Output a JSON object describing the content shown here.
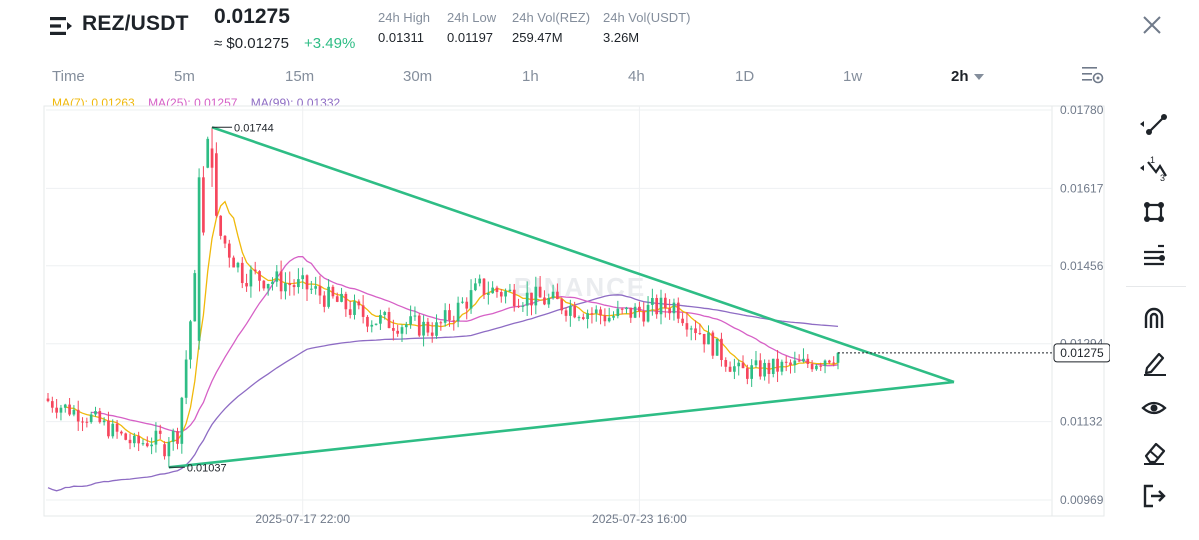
{
  "header": {
    "pair": "REZ/USDT",
    "last_price": "0.01275",
    "price_usd": "≈ $0.01275",
    "change": "+3.49%",
    "stats": [
      {
        "label": "24h High",
        "value": "0.01311"
      },
      {
        "label": "24h Low",
        "value": "0.01197"
      },
      {
        "label": "24h Vol(REZ)",
        "value": "259.47M"
      },
      {
        "label": "24h Vol(USDT)",
        "value": "3.26M"
      }
    ]
  },
  "timeframes": [
    "Time",
    "5m",
    "15m",
    "30m",
    "1h",
    "4h",
    "1D",
    "1w",
    "2h"
  ],
  "active_timeframe": "2h",
  "ma_legend": [
    {
      "label": "MA(7): 0.01263",
      "color": "#f0b90b"
    },
    {
      "label": "MA(25): 0.01257",
      "color": "#d660c6"
    },
    {
      "label": "MA(99): 0.01332",
      "color": "#8e6cc4"
    }
  ],
  "icons": {
    "menu": "menu-icon",
    "close": "close-icon",
    "settings": "chart-settings-icon",
    "tools": [
      "trend-line-icon",
      "fibonacci-icon",
      "rectangle-shape-icon",
      "horizontal-lines-icon",
      "magnet-icon",
      "pencil-icon",
      "eye-icon",
      "eraser-icon",
      "exit-icon"
    ]
  },
  "colors": {
    "up": "#2ebd85",
    "down": "#f6465d",
    "triangle": "#2ebd85",
    "grid": "#eef0f2"
  },
  "watermark": "BINANCE",
  "chart_data": {
    "type": "candlestick",
    "symbol": "REZ/USDT",
    "interval": "2h",
    "ylim": [
      0.00969,
      0.0178
    ],
    "y_ticks": [
      "0.01780",
      "0.01617",
      "0.01456",
      "0.01294",
      "0.01132",
      "0.00969"
    ],
    "x_ticks": [
      "2025-07-17 22:00",
      "2025-07-23 16:00"
    ],
    "current_price_label": "0.01275",
    "high_annotation": "0.01744",
    "low_annotation": "0.01037",
    "candle_key_points": [
      {
        "i": 0,
        "o": 0.0118,
        "c": 0.0117
      },
      {
        "i": 10,
        "o": 0.0115,
        "c": 0.0113
      },
      {
        "i": 20,
        "o": 0.011,
        "c": 0.0107
      },
      {
        "i": 30,
        "o": 0.0108,
        "c": 0.0113
      },
      {
        "i": 35,
        "o": 0.0135,
        "c": 0.0165
      },
      {
        "i": 38,
        "o": 0.016,
        "c": 0.015
      },
      {
        "i": 45,
        "o": 0.0148,
        "c": 0.014
      },
      {
        "i": 60,
        "o": 0.014,
        "c": 0.0142
      },
      {
        "i": 75,
        "o": 0.0138,
        "c": 0.0131
      },
      {
        "i": 90,
        "o": 0.0131,
        "c": 0.0134
      },
      {
        "i": 100,
        "o": 0.0135,
        "c": 0.0147
      },
      {
        "i": 115,
        "o": 0.014,
        "c": 0.0137
      },
      {
        "i": 130,
        "o": 0.0134,
        "c": 0.0136
      },
      {
        "i": 145,
        "o": 0.0139,
        "c": 0.0136
      },
      {
        "i": 160,
        "o": 0.0127,
        "c": 0.012
      },
      {
        "i": 175,
        "o": 0.0124,
        "c": 0.0126
      },
      {
        "i": 182,
        "o": 0.0127,
        "c": 0.01275
      }
    ]
  }
}
